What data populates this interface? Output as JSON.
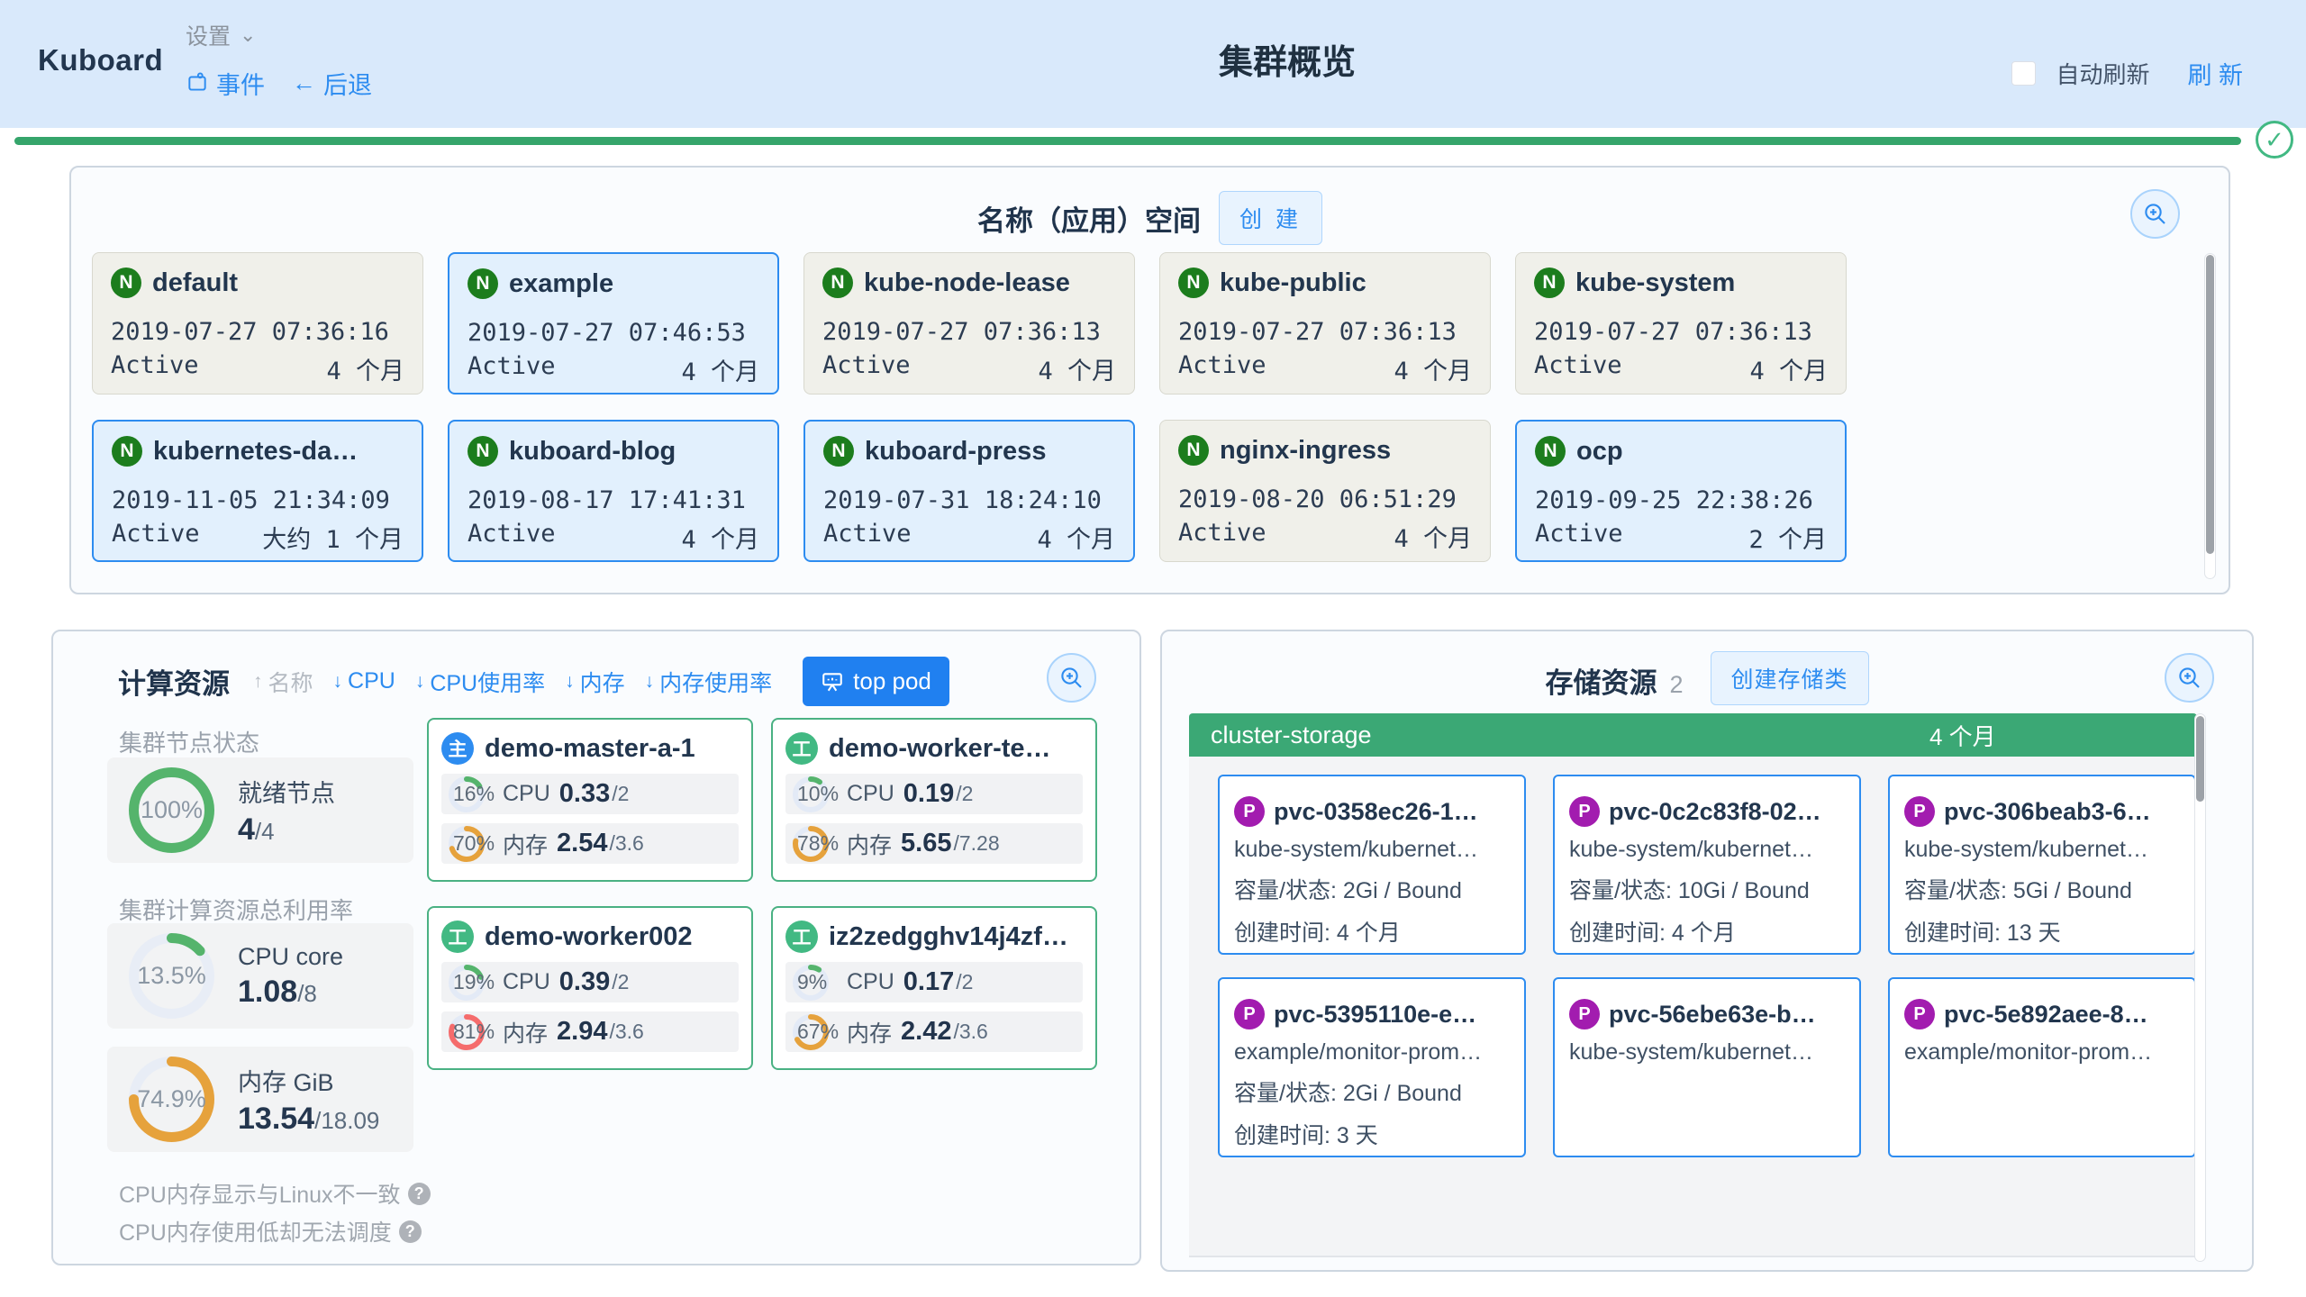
{
  "header": {
    "logo": "Kuboard",
    "settings": "设置",
    "events": "事件",
    "back_arrow": "←",
    "back": "后退",
    "title": "集群概览",
    "auto_refresh": "自动刷新",
    "refresh": "刷 新"
  },
  "colors": {
    "accent_blue": "#2d8cf0",
    "green": "#3ba875",
    "orange": "#e6a23c",
    "red": "#f56c6c",
    "purple": "#a21caf"
  },
  "namespaces": {
    "title": "名称（应用）空间",
    "create": "创 建",
    "badge": "N",
    "items": [
      {
        "name": "default",
        "created": "2019-07-27 07:36:16",
        "status": "Active",
        "age": "4 个月",
        "variant": "gray"
      },
      {
        "name": "example",
        "created": "2019-07-27 07:46:53",
        "status": "Active",
        "age": "4 个月",
        "variant": "blue"
      },
      {
        "name": "kube-node-lease",
        "created": "2019-07-27 07:36:13",
        "status": "Active",
        "age": "4 个月",
        "variant": "gray"
      },
      {
        "name": "kube-public",
        "created": "2019-07-27 07:36:13",
        "status": "Active",
        "age": "4 个月",
        "variant": "gray"
      },
      {
        "name": "kube-system",
        "created": "2019-07-27 07:36:13",
        "status": "Active",
        "age": "4 个月",
        "variant": "gray"
      },
      {
        "name": "kubernetes-da…",
        "created": "2019-11-05 21:34:09",
        "status": "Active",
        "age": "大约 1 个月",
        "variant": "blue"
      },
      {
        "name": "kuboard-blog",
        "created": "2019-08-17 17:41:31",
        "status": "Active",
        "age": "4 个月",
        "variant": "blue"
      },
      {
        "name": "kuboard-press",
        "created": "2019-07-31 18:24:10",
        "status": "Active",
        "age": "4 个月",
        "variant": "blue"
      },
      {
        "name": "nginx-ingress",
        "created": "2019-08-20 06:51:29",
        "status": "Active",
        "age": "4 个月",
        "variant": "gray"
      },
      {
        "name": "ocp",
        "created": "2019-09-25 22:38:26",
        "status": "Active",
        "age": "2 个月",
        "variant": "blue"
      }
    ]
  },
  "compute": {
    "title": "计算资源",
    "sorts": [
      {
        "arrow": "↑",
        "label": "名称",
        "active": false
      },
      {
        "arrow": "↓",
        "label": "CPU",
        "active": true
      },
      {
        "arrow": "↓",
        "label": "CPU使用率",
        "active": true
      },
      {
        "arrow": "↓",
        "label": "内存",
        "active": true
      },
      {
        "arrow": "↓",
        "label": "内存使用率",
        "active": true
      }
    ],
    "top_pod": "top pod",
    "node_status_label": "集群节点状态",
    "ready": {
      "pct": 100,
      "pct_label": "100%",
      "color": "#55b46c",
      "track": "#e8edf6",
      "label": "就绪节点",
      "value": "4",
      "total": "/4"
    },
    "utilization_label": "集群计算资源总利用率",
    "cpu_total": {
      "pct": 13.5,
      "pct_label": "13.5%",
      "color": "#55b46c",
      "track": "#e8edf6",
      "label": "CPU core",
      "value": "1.08",
      "total": "/8"
    },
    "mem_total": {
      "pct": 74.9,
      "pct_label": "74.9%",
      "color": "#e6a23c",
      "track": "#e8edf6",
      "label": "内存 GiB",
      "value": "13.54",
      "total": "/18.09"
    },
    "notes": [
      "CPU内存显示与Linux不一致",
      "CPU内存使用低却无法调度"
    ],
    "question_mark": "?",
    "nodes": [
      {
        "role": "主",
        "name": "demo-master-a-1",
        "cpu": {
          "pct": 16,
          "pct_label": "16%",
          "color": "#55b46c",
          "track": "#e3eaf6",
          "label": "CPU",
          "value": "0.33",
          "total": "/2"
        },
        "mem": {
          "pct": 70,
          "pct_label": "70%",
          "color": "#e6a23c",
          "track": "#e3eaf6",
          "label": "内存",
          "value": "2.54",
          "total": "/3.6"
        }
      },
      {
        "role": "工",
        "name": "demo-worker-te…",
        "cpu": {
          "pct": 10,
          "pct_label": "10%",
          "color": "#55b46c",
          "track": "#e3eaf6",
          "label": "CPU",
          "value": "0.19",
          "total": "/2"
        },
        "mem": {
          "pct": 78,
          "pct_label": "78%",
          "color": "#e6a23c",
          "track": "#e3eaf6",
          "label": "内存",
          "value": "5.65",
          "total": "/7.28"
        }
      },
      {
        "role": "工",
        "name": "demo-worker002",
        "cpu": {
          "pct": 19,
          "pct_label": "19%",
          "color": "#55b46c",
          "track": "#e3eaf6",
          "label": "CPU",
          "value": "0.39",
          "total": "/2"
        },
        "mem": {
          "pct": 81,
          "pct_label": "81%",
          "color": "#f56c6c",
          "track": "#e3eaf6",
          "label": "内存",
          "value": "2.94",
          "total": "/3.6"
        }
      },
      {
        "role": "工",
        "name": "iz2zedgghv14j4zf…",
        "cpu": {
          "pct": 9,
          "pct_label": "9%",
          "color": "#55b46c",
          "track": "#e3eaf6",
          "label": "CPU",
          "value": "0.17",
          "total": "/2"
        },
        "mem": {
          "pct": 67,
          "pct_label": "67%",
          "color": "#e6a23c",
          "track": "#e3eaf6",
          "label": "内存",
          "value": "2.42",
          "total": "/3.6"
        }
      }
    ]
  },
  "storage": {
    "title": "存储资源",
    "count": "2",
    "create": "创建存储类",
    "badge": "P",
    "group": {
      "name": "cluster-storage",
      "age": "4 个月"
    },
    "pvcs": [
      {
        "name": "pvc-0358ec26-1…",
        "namespace": "kube-system/kubernet…",
        "capacity": "容量/状态: 2Gi / Bound",
        "created": "创建时间:  4 个月"
      },
      {
        "name": "pvc-0c2c83f8-02…",
        "namespace": "kube-system/kubernet…",
        "capacity": "容量/状态: 10Gi / Bound",
        "created": "创建时间:  4 个月"
      },
      {
        "name": "pvc-306beab3-6…",
        "namespace": "kube-system/kubernet…",
        "capacity": "容量/状态: 5Gi / Bound",
        "created": "创建时间:  13 天"
      },
      {
        "name": "pvc-5395110e-e…",
        "namespace": "example/monitor-prom…",
        "capacity": "容量/状态: 2Gi / Bound",
        "created": "创建时间:  3 天"
      },
      {
        "name": "pvc-56ebe63e-b…",
        "namespace": "kube-system/kubernet…"
      },
      {
        "name": "pvc-5e892aee-8…",
        "namespace": "example/monitor-prom…"
      }
    ]
  }
}
